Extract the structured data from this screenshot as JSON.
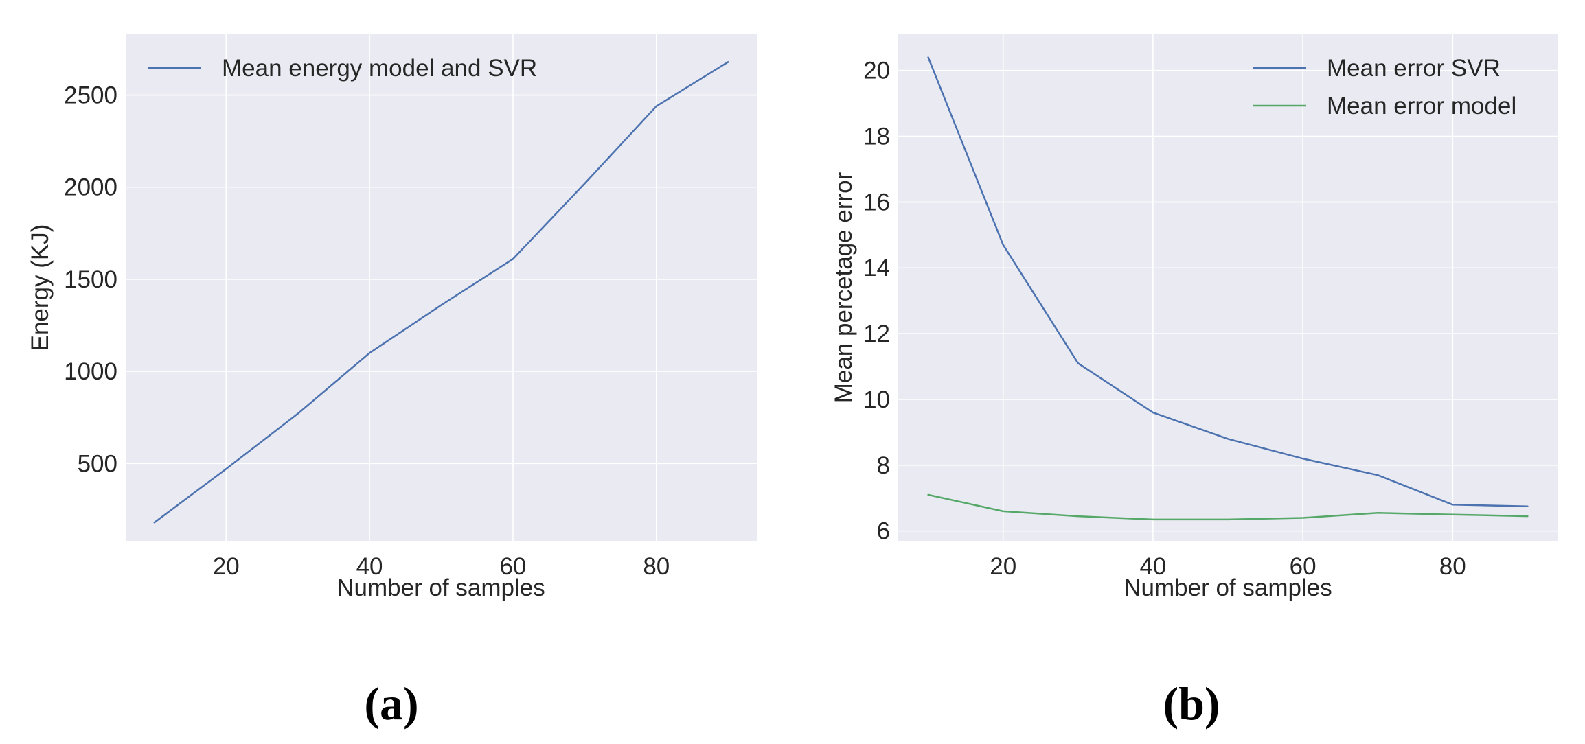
{
  "chart_data": [
    {
      "type": "line",
      "panel_label": "(a)",
      "title": "",
      "xlabel": "Number of samples",
      "ylabel": "Energy (KJ)",
      "xlim": [
        6,
        94
      ],
      "ylim": [
        80,
        2830
      ],
      "xticks": [
        20,
        40,
        60,
        80
      ],
      "yticks": [
        500,
        1000,
        1500,
        2000,
        2500
      ],
      "grid": true,
      "legend_position": "top-left",
      "series": [
        {
          "name": "Mean energy model and SVR",
          "color": "#4c72b0",
          "x": [
            10,
            20,
            30,
            40,
            50,
            60,
            70,
            80,
            90
          ],
          "y": [
            180,
            470,
            770,
            1100,
            1360,
            1610,
            2020,
            2440,
            2680
          ]
        }
      ]
    },
    {
      "type": "line",
      "panel_label": "(b)",
      "title": "",
      "xlabel": "Number of samples",
      "ylabel": "Mean percetage error",
      "xlim": [
        6,
        94
      ],
      "ylim": [
        5.7,
        21.1
      ],
      "xticks": [
        20,
        40,
        60,
        80
      ],
      "yticks": [
        6,
        8,
        10,
        12,
        14,
        16,
        18,
        20
      ],
      "grid": true,
      "legend_position": "top-right",
      "series": [
        {
          "name": "Mean error SVR",
          "color": "#4c72b0",
          "x": [
            10,
            20,
            30,
            40,
            50,
            60,
            70,
            80,
            90
          ],
          "y": [
            20.4,
            14.7,
            11.1,
            9.6,
            8.8,
            8.2,
            7.7,
            6.8,
            6.75
          ]
        },
        {
          "name": "Mean error model",
          "color": "#55a868",
          "x": [
            10,
            20,
            30,
            40,
            50,
            60,
            70,
            80,
            90
          ],
          "y": [
            7.1,
            6.6,
            6.45,
            6.35,
            6.35,
            6.4,
            6.55,
            6.5,
            6.45
          ]
        }
      ]
    }
  ]
}
